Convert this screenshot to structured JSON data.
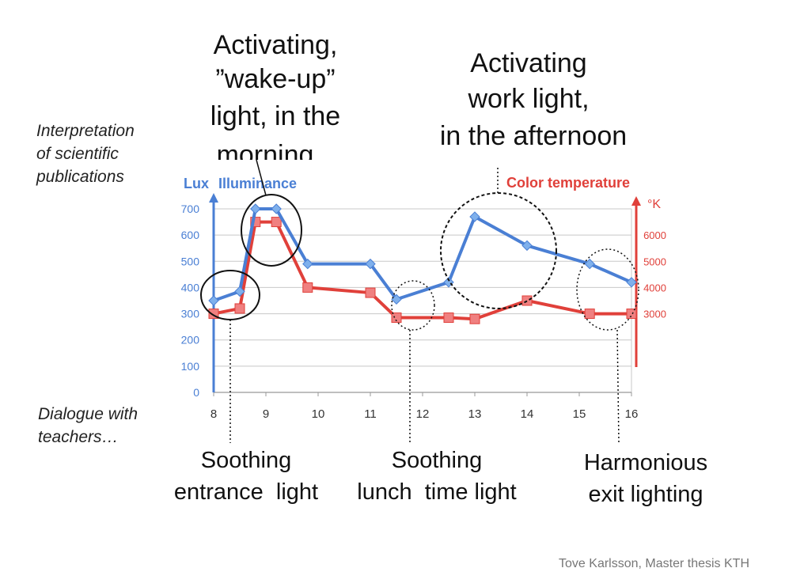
{
  "colors": {
    "lux": "#4a7fd4",
    "lux_marker": "#7fb0ec",
    "temp": "#e0403a",
    "temp_marker": "#f08080",
    "grid": "#c8c8c8",
    "circle": "#111111"
  },
  "chart_data": {
    "type": "line",
    "x": [
      8,
      8.5,
      8.8,
      9.2,
      9.8,
      11,
      11.5,
      12.5,
      13,
      14,
      15.2,
      16
    ],
    "xticks": [
      "8",
      "9",
      "10",
      "11",
      "12",
      "13",
      "14",
      "15",
      "16"
    ],
    "xlim": [
      8,
      16
    ],
    "grid": true,
    "series": [
      {
        "name": "Illuminance",
        "axis": "left",
        "values": [
          350,
          385,
          700,
          700,
          490,
          490,
          355,
          420,
          670,
          560,
          490,
          420
        ]
      },
      {
        "name": "Color temperature",
        "axis": "right",
        "values_left_scale": [
          300,
          320,
          650,
          650,
          400,
          380,
          285,
          285,
          280,
          350,
          300,
          300
        ]
      }
    ],
    "left_axis": {
      "title": "Lux",
      "series_label": "Illuminance",
      "ylim": [
        0,
        700
      ],
      "ticks": [
        "0",
        "100",
        "200",
        "300",
        "400",
        "500",
        "600",
        "700"
      ]
    },
    "right_axis": {
      "title": "Color temperature",
      "unit": "°K",
      "ticks": [
        {
          "label": "3000",
          "at": 300
        },
        {
          "label": "4000",
          "at": 400
        },
        {
          "label": "5000",
          "at": 500
        },
        {
          "label": "6000",
          "at": 600
        }
      ]
    }
  },
  "annotations": {
    "top_morning": [
      "Activating,",
      "”wake-up”",
      "light, in the",
      "morning"
    ],
    "top_afternoon": [
      "Activating",
      "work light,",
      "in the afternoon"
    ],
    "side_top": [
      "Interpretation",
      "of scientific",
      "publications"
    ],
    "side_bottom": [
      "Dialogue with",
      "teachers…"
    ],
    "bottom_entrance": [
      "Soothing",
      "entrance  light"
    ],
    "bottom_lunch": [
      "Soothing",
      "lunch  time light"
    ],
    "bottom_exit": [
      "Harmonious",
      "exit lighting"
    ]
  },
  "credit": "Tove Karlsson, Master thesis KTH"
}
